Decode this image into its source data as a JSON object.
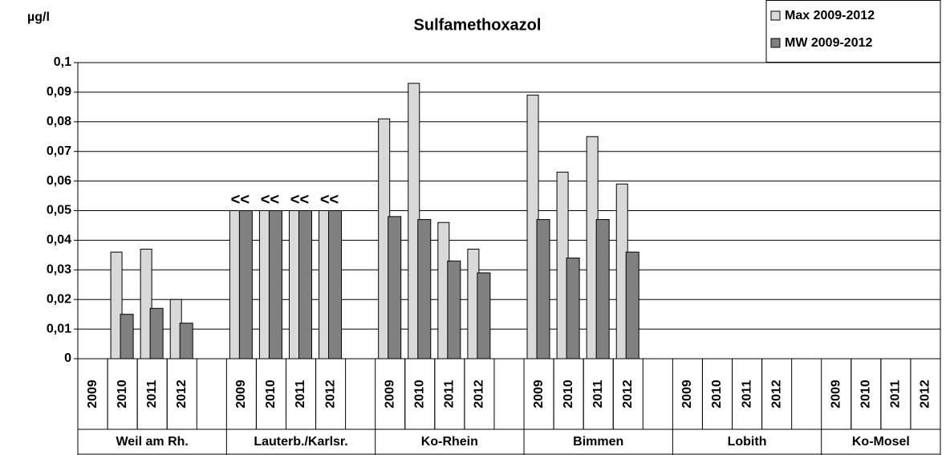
{
  "chart_data": {
    "type": "bar",
    "title": "Sulfamethoxazol",
    "y_label": "µg/l",
    "groups": [
      "Weil am Rh.",
      "Lauterb./Karlsr.",
      "Ko-Rhein",
      "Bimmen",
      "Lobith",
      "Ko-Mosel"
    ],
    "categories": [
      "2009",
      "2010",
      "2011",
      "2012",
      "2009",
      "2010",
      "2011",
      "2012",
      "2009",
      "2010",
      "2011",
      "2012",
      "2009",
      "2010",
      "2011",
      "2012",
      "2009",
      "2010",
      "2011",
      "2012",
      "2009",
      "2010",
      "2011",
      "2012"
    ],
    "series": [
      {
        "name": "Max 2009-2012",
        "color": "#d9d9d9",
        "values": [
          null,
          0.036,
          0.037,
          0.02,
          0.05,
          0.05,
          0.05,
          0.05,
          0.081,
          0.093,
          0.046,
          0.037,
          0.089,
          0.063,
          0.075,
          0.059,
          null,
          null,
          null,
          null,
          null,
          null,
          null,
          null
        ]
      },
      {
        "name": "MW 2009-2012",
        "color": "#808080",
        "values": [
          null,
          0.015,
          0.017,
          0.012,
          0.05,
          0.05,
          0.05,
          0.05,
          0.048,
          0.047,
          0.033,
          0.029,
          0.047,
          0.034,
          0.047,
          0.036,
          null,
          null,
          null,
          null,
          null,
          null,
          null,
          null
        ]
      }
    ],
    "annotations": [
      null,
      null,
      null,
      null,
      "<<",
      "<<",
      "<<",
      "<<",
      null,
      null,
      null,
      null,
      null,
      null,
      null,
      null,
      null,
      null,
      null,
      null,
      null,
      null,
      null,
      null
    ],
    "ylim": [
      0,
      0.1
    ],
    "yticks": [
      0,
      {
        "value": 0.01,
        "label": "0,01"
      },
      {
        "value": 0.02,
        "label": "0,02"
      },
      {
        "value": 0.03,
        "label": "0,03"
      },
      {
        "value": 0.04,
        "label": "0,04"
      },
      {
        "value": 0.05,
        "label": "0,05"
      },
      {
        "value": 0.06,
        "label": "0,06"
      },
      {
        "value": 0.07,
        "label": "0,07"
      },
      {
        "value": 0.08,
        "label": "0,08"
      },
      {
        "value": 0.09,
        "label": "0,09"
      },
      {
        "value": 0.1,
        "label": "0,1"
      }
    ],
    "grid": true,
    "legend": "top-right"
  }
}
